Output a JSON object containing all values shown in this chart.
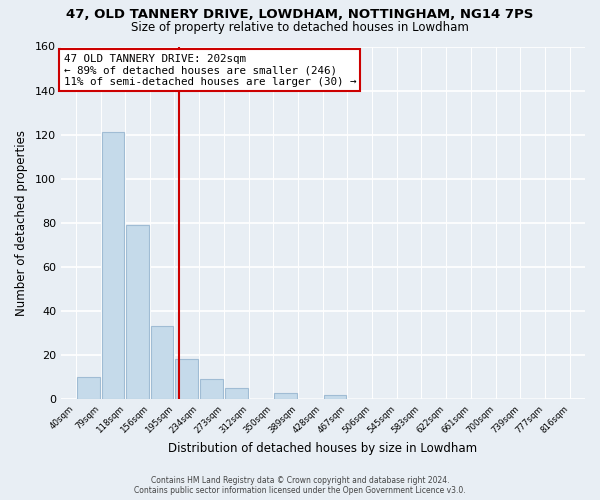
{
  "title": "47, OLD TANNERY DRIVE, LOWDHAM, NOTTINGHAM, NG14 7PS",
  "subtitle": "Size of property relative to detached houses in Lowdham",
  "xlabel": "Distribution of detached houses by size in Lowdham",
  "ylabel": "Number of detached properties",
  "bar_values": [
    10,
    121,
    79,
    33,
    18,
    9,
    5,
    0,
    3,
    0,
    2,
    0,
    0,
    0,
    0,
    0,
    0,
    0,
    0
  ],
  "bin_edges": [
    40,
    79,
    118,
    156,
    195,
    234,
    273,
    312,
    350,
    389,
    428,
    467,
    506,
    545,
    583,
    622,
    661,
    700,
    739,
    778
  ],
  "bin_labels": [
    "40sqm",
    "79sqm",
    "118sqm",
    "156sqm",
    "195sqm",
    "234sqm",
    "273sqm",
    "312sqm",
    "350sqm",
    "389sqm",
    "428sqm",
    "467sqm",
    "506sqm",
    "545sqm",
    "583sqm",
    "622sqm",
    "661sqm",
    "700sqm",
    "739sqm",
    "777sqm",
    "816sqm"
  ],
  "bar_color": "#c5daea",
  "bar_edge_color": "#a0bcd4",
  "property_line_x": 202,
  "annotation_text_line1": "47 OLD TANNERY DRIVE: 202sqm",
  "annotation_text_line2": "← 89% of detached houses are smaller (246)",
  "annotation_text_line3": "11% of semi-detached houses are larger (30) →",
  "annotation_box_color": "#ffffff",
  "annotation_box_edge": "#cc0000",
  "red_line_color": "#cc0000",
  "ylim": [
    0,
    160
  ],
  "yticks": [
    0,
    20,
    40,
    60,
    80,
    100,
    120,
    140,
    160
  ],
  "background_color": "#e8eef4",
  "plot_bg_color": "#e8eef4",
  "grid_color": "#ffffff",
  "footer_line1": "Contains HM Land Registry data © Crown copyright and database right 2024.",
  "footer_line2": "Contains public sector information licensed under the Open Government Licence v3.0."
}
